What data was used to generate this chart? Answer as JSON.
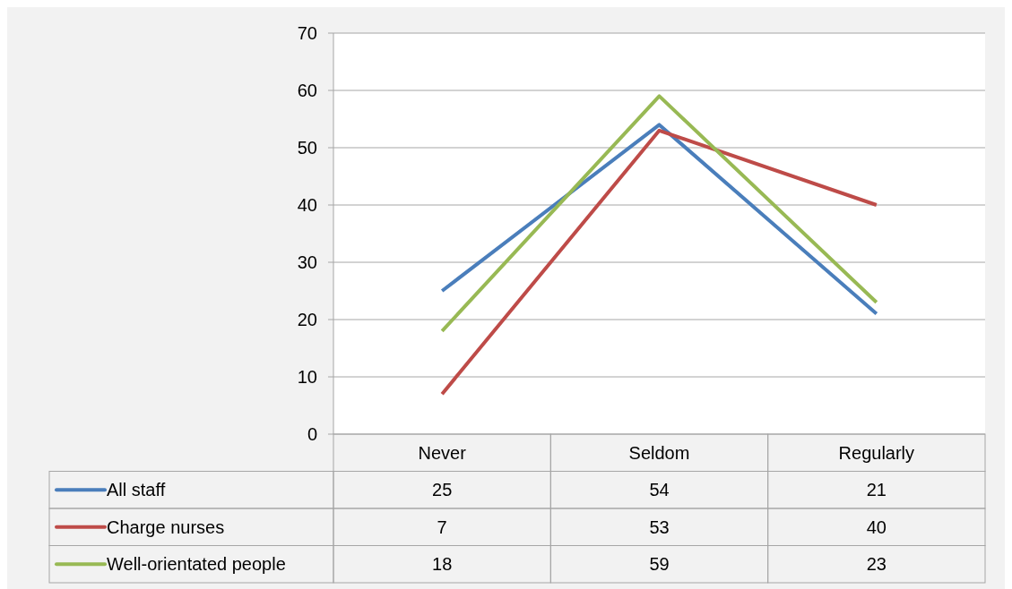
{
  "chart_data": {
    "type": "line",
    "categories": [
      "Never",
      "Seldom",
      "Regularly"
    ],
    "series": [
      {
        "name": "All staff",
        "color": "#4a7ebb",
        "values": [
          25,
          54,
          21
        ]
      },
      {
        "name": "Charge nurses",
        "color": "#be4b48",
        "values": [
          7,
          53,
          40
        ]
      },
      {
        "name": "Well-orientated people",
        "color": "#98b954",
        "values": [
          18,
          59,
          23
        ]
      }
    ],
    "ylim": [
      0,
      70
    ],
    "yticks": [
      0,
      10,
      20,
      30,
      40,
      50,
      60,
      70
    ],
    "grid": "y",
    "legend": "bottom",
    "data_labels": true,
    "marker": "none",
    "line_style": "solid"
  }
}
